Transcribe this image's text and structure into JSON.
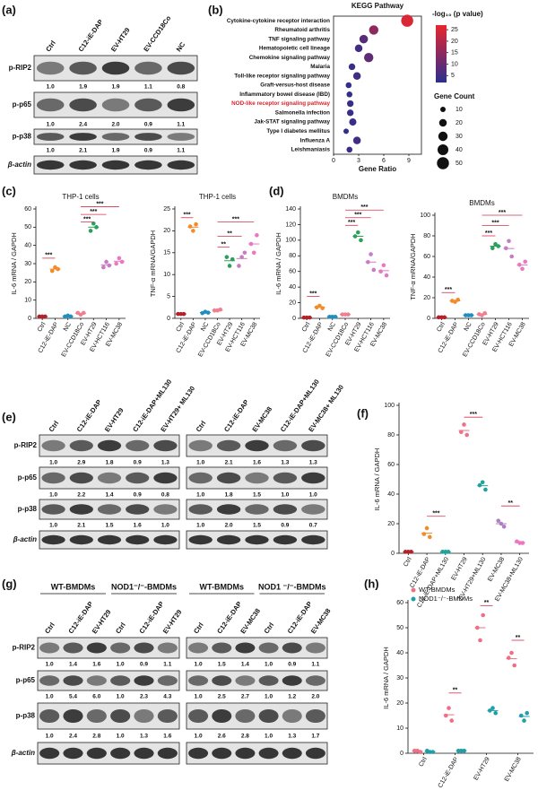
{
  "panel_labels": [
    "(a)",
    "(b)",
    "(c)",
    "(d)",
    "(e)",
    "(f)",
    "(g)",
    "(h)"
  ],
  "blots": [
    {
      "columns": [
        "Ctrl",
        "C12-iE-DAP",
        "EV-HT29",
        "EV-CCD18Co",
        "NC"
      ],
      "row_labels": [
        "p-RIP2",
        "p-p65",
        "p-p38",
        "β-actin"
      ],
      "quant": [
        [
          "1.0",
          "1.9",
          "1.9",
          "1.1",
          "0.8"
        ],
        [
          "1.0",
          "2.4",
          "2.0",
          "0.9",
          "1.1"
        ],
        [
          "1.0",
          "2.1",
          "1.9",
          "0.9",
          "1.1"
        ]
      ]
    },
    {
      "columns": [
        "Ctrl",
        "C12-iE-DAP",
        "EV-HT29",
        "C12-iE-DAP+ML130",
        "EV-HT29+ ML130"
      ],
      "row_labels": [
        "p-RIP2",
        "p-p65",
        "p-p38",
        "β-actin"
      ],
      "quant": [
        [
          "1.0",
          "2.9",
          "1.8",
          "0.9",
          "1.3"
        ],
        [
          "1.0",
          "2.2",
          "1.4",
          "0.9",
          "0.8"
        ],
        [
          "1.0",
          "2.1",
          "1.5",
          "1.6",
          "1.0"
        ]
      ]
    },
    {
      "columns": [
        "Ctrl",
        "C12-iE-DAP",
        "EV-MC38",
        "C12-iE-DAP+ML130",
        "EV-MC38+ ML130"
      ],
      "quant": [
        [
          "1.0",
          "2.1",
          "1.6",
          "1.3",
          "1.3"
        ],
        [
          "1.0",
          "1.8",
          "1.5",
          "1.0",
          "1.0"
        ],
        [
          "1.0",
          "2.0",
          "1.5",
          "0.9",
          "0.7"
        ]
      ]
    },
    {
      "groups": [
        "WT-BMDMs",
        "NOD1⁻/⁻-BMDMs"
      ],
      "columns": [
        "Ctrl",
        "C12-iE-DAP",
        "EV-HT29",
        "Ctrl",
        "C12-iE-DAP",
        "EV-HT29"
      ],
      "row_labels": [
        "p-RIP2",
        "p-p65",
        "p-p38",
        "β-actin"
      ],
      "quant": [
        [
          "1.0",
          "1.4",
          "1.6",
          "1.0",
          "0.9",
          "1.1"
        ],
        [
          "1.0",
          "5.4",
          "6.0",
          "1.0",
          "2.3",
          "4.3"
        ],
        [
          "1.0",
          "2.4",
          "2.8",
          "1.0",
          "1.3",
          "1.6"
        ]
      ]
    },
    {
      "groups": [
        "WT-BMDMs",
        "NOD1 ⁻/⁻-BMDMs"
      ],
      "columns": [
        "Ctrl",
        "C12-iE-DAP",
        "EV-MC38",
        "Ctrl",
        "C12-iE-DAP",
        "EV-MC38"
      ],
      "quant": [
        [
          "1.0",
          "1.5",
          "1.4",
          "1.0",
          "0.9",
          "1.1"
        ],
        [
          "1.0",
          "2.5",
          "2.7",
          "1.0",
          "1.2",
          "2.0"
        ],
        [
          "1.0",
          "2.6",
          "2.8",
          "1.0",
          "1.3",
          "1.7"
        ]
      ]
    }
  ],
  "chart_data": [
    {
      "type": "bubble",
      "title": "KEGG Pathway",
      "categories": [
        "Cytokine-cytokine receptor interaction",
        "Rheumatoid arthritis",
        "TNF signaling pathway",
        "Hematopoietic cell lineage",
        "Chemokine signaling pathway",
        "Malaria",
        "Toll-like receptor signaling pathway",
        "Graft-versus-host disease",
        "Inflammatory bowel disease (IBD)",
        "NOD-like receptor signaling pathway",
        "Salmonella infection",
        "Jak-STAT signaling pathway",
        "Type I diabetes mellitus",
        "Influenza A",
        "Leishmaniasis"
      ],
      "values": [
        8.8,
        4.8,
        3.6,
        3.0,
        4.2,
        2.2,
        2.8,
        1.8,
        1.9,
        2.0,
        2.0,
        2.3,
        1.5,
        2.8,
        1.9
      ],
      "sizes": [
        50,
        30,
        25,
        20,
        30,
        15,
        20,
        12,
        12,
        15,
        15,
        18,
        10,
        20,
        12
      ],
      "color_values": [
        25,
        15,
        8,
        5,
        9,
        4,
        5,
        3,
        3,
        4,
        4,
        4,
        3,
        5,
        4
      ],
      "xlim": [
        0,
        10.5
      ],
      "xticks": [
        0,
        3,
        6,
        9
      ],
      "x_label": "Gene Ratio",
      "colorbar_title": "-log₁₀ (p value)",
      "clim": [
        2,
        27
      ],
      "cticks": [
        5,
        10,
        15,
        20,
        25
      ],
      "colors": [
        "#2a2f8f",
        "#e8262d"
      ],
      "size_title": "Gene Count",
      "size_ticks": [
        10,
        20,
        30,
        40,
        50
      ],
      "highlight": [
        9
      ],
      "highlight_color": "#e0202a"
    },
    {
      "type": "dot",
      "title": "THP-1 cells",
      "y_label": "IL-6 mRNA / GAPDH",
      "categories": [
        "Ctrl",
        "C12-iE-DAP",
        "NC",
        "EV-CCD18Co",
        "EV-HT29",
        "EV-HCT116",
        "EV-MC38"
      ],
      "values": [
        [
          1,
          1,
          1
        ],
        [
          26,
          28,
          27
        ],
        [
          1,
          1.5,
          1
        ],
        [
          3,
          2,
          3
        ],
        [
          48,
          52,
          50
        ],
        [
          28,
          31,
          29
        ],
        [
          30,
          33,
          31
        ]
      ],
      "colors": [
        "#b3222a",
        "#f28c28",
        "#1f8fbf",
        "#f07f8f",
        "#2ca05a",
        "#c77cc5",
        "#e878c0"
      ],
      "ylim": [
        0,
        60
      ],
      "yticks": [
        0,
        10,
        20,
        30,
        40,
        50,
        60
      ],
      "annotations": [
        "***",
        "***",
        "***",
        "***"
      ]
    },
    {
      "type": "dot",
      "title": "THP-1 cells",
      "y_label": "TNF-α mRNA/GAPDH",
      "categories": [
        "Ctrl",
        "C12-iE-DAP",
        "NC",
        "EV-CCD18Co",
        "EV-HT29",
        "EV-HCT116",
        "EV-MC38"
      ],
      "values": [
        [
          1,
          1,
          1
        ],
        [
          21,
          20,
          21.5
        ],
        [
          1.2,
          1.5,
          1.3
        ],
        [
          1.8,
          1.8,
          2
        ],
        [
          14,
          12,
          13.5
        ],
        [
          12,
          14,
          15
        ],
        [
          17,
          15,
          19
        ]
      ],
      "colors": [
        "#b3222a",
        "#f28c28",
        "#1f8fbf",
        "#f07f8f",
        "#2ca05a",
        "#c77cc5",
        "#e878c0"
      ],
      "ylim": [
        0,
        25
      ],
      "yticks": [
        0,
        5,
        10,
        15,
        20,
        25
      ],
      "annotations": [
        "***",
        "**",
        "**",
        "***"
      ]
    },
    {
      "type": "dot",
      "title": "BMDMs",
      "y_label": "IL-6 mRNA / GAPDH",
      "categories": [
        "Ctrl",
        "C12-iE-DAP",
        "NC",
        "EV-CCD18Co",
        "EV-HT29",
        "EV-HCT116",
        "EV-MC38"
      ],
      "values": [
        [
          1,
          1,
          1
        ],
        [
          14,
          16,
          13
        ],
        [
          2,
          2,
          2
        ],
        [
          5,
          5,
          5
        ],
        [
          105,
          110,
          100
        ],
        [
          72,
          82,
          62
        ],
        [
          60,
          68,
          55
        ]
      ],
      "colors": [
        "#b3222a",
        "#f28c28",
        "#1f8fbf",
        "#f07f8f",
        "#2ca05a",
        "#c77cc5",
        "#e878c0"
      ],
      "ylim": [
        0,
        140
      ],
      "yticks": [
        0,
        20,
        40,
        60,
        80,
        100,
        120,
        140
      ],
      "annotations": [
        "***",
        "***",
        "***",
        "***"
      ]
    },
    {
      "type": "dot",
      "title": "BMDMs",
      "y_label": "TNF-α mRNA/GAPDH",
      "categories": [
        "Ctrl",
        "C12-iE-DAP",
        "NC",
        "EV-CCD18Co",
        "EV-HT29",
        "EV-HCT116",
        "EV-MC38"
      ],
      "values": [
        [
          1,
          1,
          1
        ],
        [
          17,
          16,
          18
        ],
        [
          3,
          3,
          3
        ],
        [
          4,
          3,
          5
        ],
        [
          68,
          72,
          70
        ],
        [
          68,
          75,
          60
        ],
        [
          52,
          48,
          55
        ]
      ],
      "colors": [
        "#b3222a",
        "#f28c28",
        "#1f8fbf",
        "#f07f8f",
        "#2ca05a",
        "#c77cc5",
        "#e878c0"
      ],
      "ylim": [
        0,
        100
      ],
      "yticks": [
        0,
        20,
        40,
        60,
        80,
        100
      ],
      "annotations": [
        "***",
        "***",
        "***",
        "***"
      ]
    },
    {
      "type": "dot",
      "y_label": "IL-6 mRNA / GAPDH",
      "categories": [
        "Ctrl",
        "C12-iE-DAP",
        "C12-iE-DAP+ML130",
        "EV-HT29",
        "EV-HT29+ML130",
        "EV-MC38",
        "EV-MC38+ML130"
      ],
      "values": [
        [
          1,
          1,
          1
        ],
        [
          13,
          17,
          11
        ],
        [
          1,
          1,
          1
        ],
        [
          82,
          87,
          80
        ],
        [
          46,
          48,
          43
        ],
        [
          22,
          20,
          18
        ],
        [
          8,
          7,
          7
        ]
      ],
      "colors": [
        "#b3222a",
        "#f28c28",
        "#1fa3a0",
        "#f0708a",
        "#1fa3a0",
        "#b07fc0",
        "#e878c0"
      ],
      "ylim": [
        0,
        100
      ],
      "yticks": [
        0,
        20,
        40,
        60,
        80,
        100
      ],
      "annotations": [
        "***",
        "***",
        "**"
      ]
    },
    {
      "type": "dot",
      "y_label": "IL-6 mRNA / GAPDH",
      "categories": [
        "Ctrl",
        "C12-iE-DAP",
        "EV-HT29",
        "EV-MC38"
      ],
      "series": [
        {
          "name": "WT-BMDMs",
          "color": "#ee6f86",
          "values": [
            [
              1,
              1,
              0.5
            ],
            [
              15,
              18,
              13
            ],
            [
              50,
              45,
              55
            ],
            [
              38,
              40,
              35
            ]
          ]
        },
        {
          "name": "NOD1⁻/⁻-BMDMs",
          "color": "#1f9fa8",
          "values": [
            [
              1,
              0.5,
              0.5
            ],
            [
              1,
              1,
              1
            ],
            [
              17,
              18,
              16
            ],
            [
              15,
              13,
              16
            ]
          ]
        }
      ],
      "ylim": [
        0,
        60
      ],
      "yticks": [
        0,
        10,
        20,
        30,
        40,
        50,
        60
      ],
      "annotations": [
        "**",
        "**",
        "**"
      ]
    }
  ]
}
